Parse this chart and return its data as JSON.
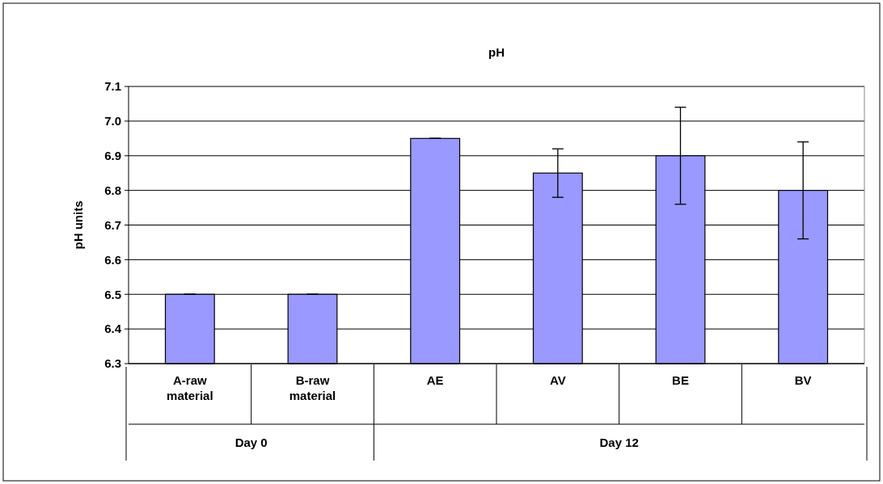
{
  "chart_data": {
    "type": "bar",
    "title": "pH",
    "ylabel": "pH units",
    "categories": [
      "A-raw material",
      "B-raw material",
      "AE",
      "AV",
      "BE",
      "BV"
    ],
    "values": [
      6.5,
      6.5,
      6.95,
      6.85,
      6.9,
      6.8
    ],
    "errors": [
      0,
      0,
      0,
      0.07,
      0.14,
      0.14
    ],
    "color": "#9999ff",
    "ylim": [
      6.3,
      7.1
    ],
    "yticks": [
      6.3,
      6.4,
      6.5,
      6.6,
      6.7,
      6.8,
      6.9,
      {
        "value": 7.0,
        "label": "7.0"
      },
      7.1
    ],
    "grid": "y",
    "annotations": [
      "Day 0",
      "Day 12"
    ]
  }
}
